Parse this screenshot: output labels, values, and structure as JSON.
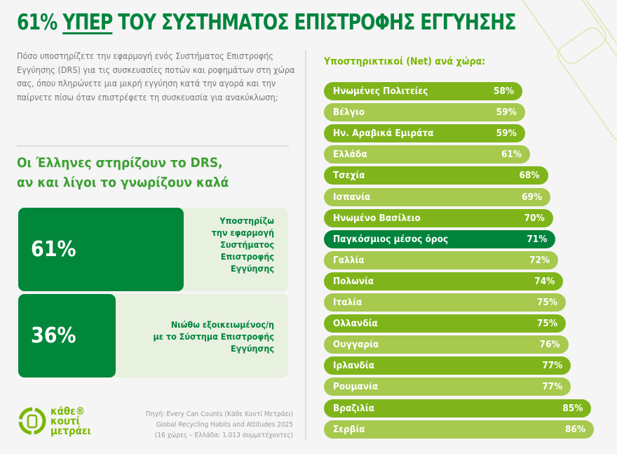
{
  "title": {
    "pct": "61%",
    "highlight": "ΥΠΕΡ",
    "rest": "ΤΟΥ ΣΥΣΤΗΜΑΤΟΣ ΕΠΙΣΤΡΟΦΗΣ ΕΓΓΥΗΣΗΣ"
  },
  "question": "Πόσο υποστηρίζετε την εφαρμογή ενός Συστήματος Επιστροφής Εγγύησης (DRS) για τις συσκευασίες ποτών και ροφημάτων στη χώρα σας, όπου πληρώνετε μια μικρή εγγύηση κατά την αγορά και την παίρνετε πίσω όταν επιστρέφετε τη συσκευασία για ανακύκλωση;",
  "subhead": {
    "line1": "Οι Έλληνες στηρίζουν το DRS,",
    "line2": "αν και λίγοι το γνωρίζουν καλά"
  },
  "cards": [
    {
      "value": "61%",
      "lines": [
        "Υποστηρίζω",
        "την εφαρμογή",
        "Συστήματος",
        "Επιστροφής",
        "Εγγύησης"
      ]
    },
    {
      "value": "36%",
      "lines": [
        "Νιώθω εξοικειωμένος/η",
        "με το Σύστημα Επιστροφής",
        "Εγγύησης"
      ]
    }
  ],
  "logo": {
    "text": [
      "κάθε®",
      "κουτί",
      "μετράει"
    ]
  },
  "source": [
    "Πηγή: Every Can Counts (Κάθε Κουτί Μετράει)",
    "Global Recycling Habits and Attitudes 2025",
    "(16 χώρες – Ελλάδα: 1.013 συμμετέχοντες)"
  ],
  "colors": {
    "dark": "#7fb51a",
    "light": "#a6c94e",
    "highlight": "#00843d"
  },
  "chart_data": {
    "type": "bar",
    "orientation": "horizontal",
    "title": "Υποστηρικτικοί (Net) ανά χώρα:",
    "categories": [
      "Ηνωμένες Πολιτείες",
      "Βέλγιο",
      "Ην. Αραβικά Εμιράτα",
      "Ελλάδα",
      "Τσεχία",
      "Ισπανία",
      "Ηνωμένο Βασίλειο",
      "Παγκόσμιος μέσος όρος",
      "Γαλλία",
      "Πολωνία",
      "Ιταλία",
      "Ολλανδία",
      "Ουγγαρία",
      "Ιρλανδία",
      "Ρουμανία",
      "Βραζιλία",
      "Σερβία"
    ],
    "values": [
      58,
      59,
      59,
      61,
      68,
      69,
      70,
      71,
      72,
      74,
      75,
      75,
      76,
      77,
      77,
      85,
      86
    ],
    "labels": [
      "58%",
      "59%",
      "59%",
      "61%",
      "68%",
      "69%",
      "70%",
      "71%",
      "72%",
      "74%",
      "75%",
      "75%",
      "76%",
      "77%",
      "77%",
      "85%",
      "86%"
    ],
    "highlight": "Παγκόσμιος μέσος όρος",
    "unit": "%"
  }
}
